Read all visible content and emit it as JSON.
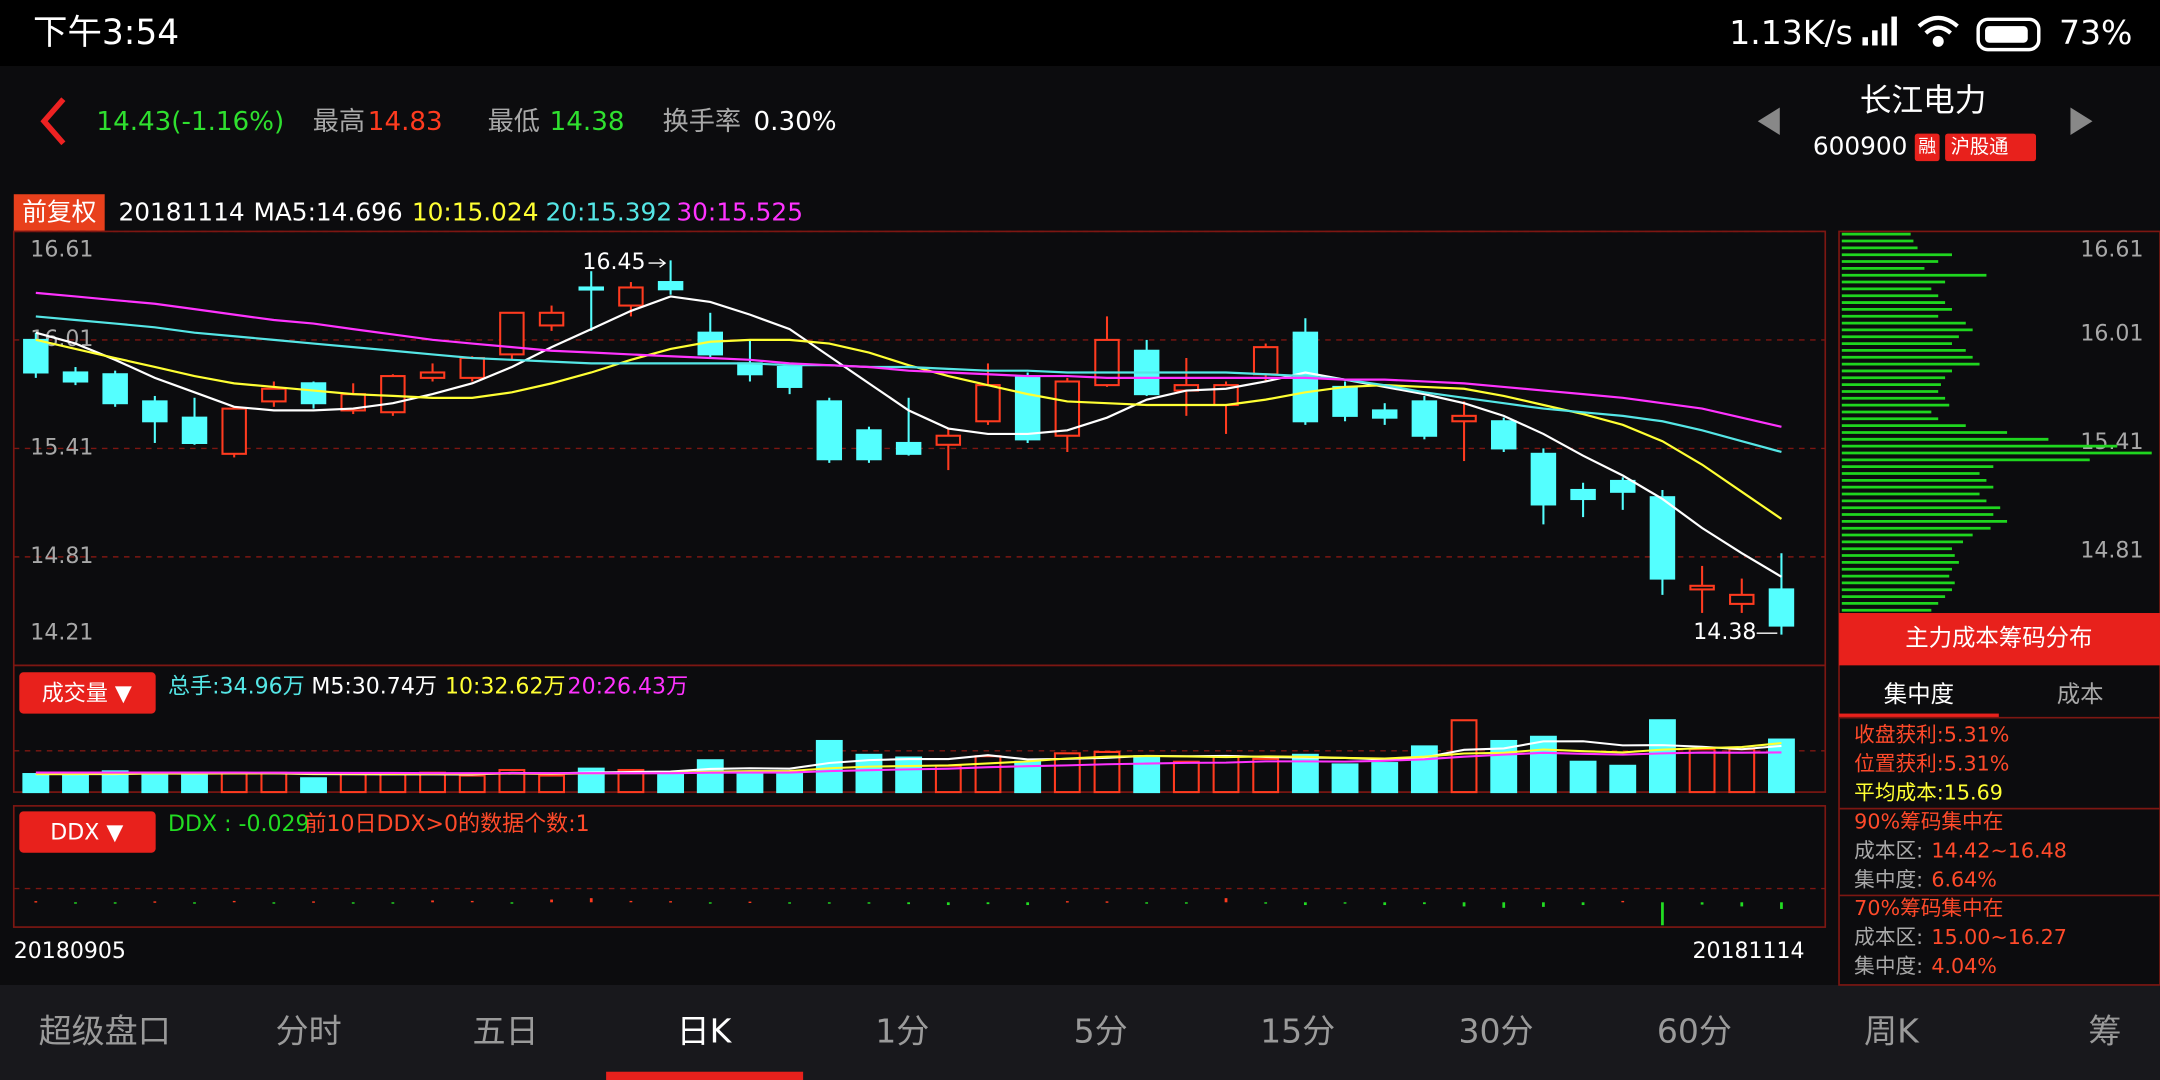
{
  "status_bar": {
    "time": "下午3:54",
    "speed": "1.13K/s",
    "battery": "73%"
  },
  "header": {
    "price": "14.43(-1.16%)",
    "high_label": "最高",
    "high": "14.83",
    "low_label": "最低",
    "low": "14.38",
    "turnover_label": "换手率",
    "turnover": "0.30%",
    "name": "长江电力",
    "code": "600900",
    "badge_margin": "融",
    "badge_connect": "沪股通"
  },
  "chart_data": [
    {
      "type": "candlestick",
      "adjust_label": "前复权",
      "categories": [
        "20180905",
        null,
        null,
        null,
        null,
        null,
        null,
        null,
        null,
        null,
        null,
        null,
        null,
        null,
        null,
        null,
        null,
        null,
        null,
        null,
        null,
        null,
        null,
        null,
        null,
        null,
        null,
        null,
        null,
        null,
        null,
        null,
        null,
        null,
        null,
        null,
        null,
        null,
        null,
        null,
        null,
        null,
        null,
        null,
        "20181114"
      ],
      "open": [
        16.01,
        15.83,
        15.82,
        15.67,
        15.58,
        15.38,
        15.67,
        15.77,
        15.62,
        15.61,
        15.8,
        15.8,
        15.93,
        16.09,
        16.3,
        16.2,
        16.33,
        16.05,
        15.88,
        15.86,
        15.67,
        15.51,
        15.44,
        15.43,
        15.56,
        15.81,
        15.48,
        15.76,
        15.95,
        15.73,
        15.65,
        15.82,
        16.05,
        15.75,
        15.62,
        15.67,
        15.56,
        15.56,
        15.38,
        15.18,
        15.23,
        15.14,
        14.63,
        14.55,
        14.63
      ],
      "high": [
        16.05,
        15.86,
        15.84,
        15.7,
        15.69,
        15.63,
        15.78,
        15.78,
        15.77,
        15.82,
        15.88,
        15.92,
        16.16,
        16.2,
        16.39,
        16.33,
        16.45,
        16.16,
        16.01,
        15.88,
        15.69,
        15.53,
        15.69,
        15.52,
        15.88,
        15.83,
        15.8,
        16.14,
        16.01,
        15.91,
        15.78,
        15.99,
        16.13,
        15.78,
        15.66,
        15.7,
        15.67,
        15.58,
        15.41,
        15.22,
        15.25,
        15.18,
        14.76,
        14.69,
        14.83
      ],
      "low": [
        15.8,
        15.76,
        15.64,
        15.44,
        15.43,
        15.36,
        15.64,
        15.63,
        15.6,
        15.59,
        15.78,
        15.78,
        15.9,
        16.06,
        16.06,
        16.14,
        16.26,
        15.91,
        15.78,
        15.71,
        15.33,
        15.33,
        15.37,
        15.29,
        15.54,
        15.44,
        15.39,
        15.75,
        15.7,
        15.59,
        15.49,
        15.78,
        15.54,
        15.56,
        15.54,
        15.46,
        15.34,
        15.39,
        14.99,
        15.03,
        15.07,
        14.6,
        14.5,
        14.5,
        14.38
      ],
      "close": [
        15.83,
        15.78,
        15.66,
        15.56,
        15.44,
        15.63,
        15.74,
        15.66,
        15.71,
        15.81,
        15.83,
        15.91,
        16.16,
        16.16,
        16.29,
        16.3,
        16.29,
        15.93,
        15.82,
        15.75,
        15.35,
        15.35,
        15.38,
        15.48,
        15.76,
        15.46,
        15.78,
        16.01,
        15.71,
        15.76,
        15.76,
        15.97,
        15.56,
        15.59,
        15.58,
        15.48,
        15.59,
        15.41,
        15.1,
        15.13,
        15.17,
        14.69,
        14.65,
        14.6,
        14.43
      ],
      "up_color": "#ff3b1f",
      "down_color": "#54ffff",
      "series": [
        {
          "name": "MA5:14.696",
          "color": "#ffffff",
          "values": [
            16.05,
            15.99,
            15.9,
            15.8,
            15.72,
            15.64,
            15.62,
            15.62,
            15.63,
            15.66,
            15.71,
            15.77,
            15.86,
            15.97,
            16.07,
            16.17,
            16.25,
            16.22,
            16.15,
            16.07,
            15.92,
            15.77,
            15.62,
            15.52,
            15.49,
            15.49,
            15.51,
            15.58,
            15.68,
            15.73,
            15.74,
            15.78,
            15.83,
            15.79,
            15.75,
            15.71,
            15.66,
            15.59,
            15.49,
            15.37,
            15.26,
            15.13,
            14.97,
            14.83,
            14.7
          ]
        },
        {
          "name": "10:15.024",
          "color": "#ffff33",
          "values": [
            16.01,
            15.96,
            15.91,
            15.86,
            15.81,
            15.77,
            15.75,
            15.73,
            15.71,
            15.7,
            15.69,
            15.69,
            15.72,
            15.77,
            15.83,
            15.9,
            15.96,
            16.0,
            16.01,
            16.01,
            15.99,
            15.94,
            15.87,
            15.81,
            15.76,
            15.71,
            15.67,
            15.66,
            15.65,
            15.65,
            15.65,
            15.68,
            15.72,
            15.75,
            15.76,
            15.75,
            15.74,
            15.7,
            15.65,
            15.6,
            15.54,
            15.45,
            15.32,
            15.17,
            15.02
          ]
        },
        {
          "name": "20:15.392",
          "color": "#55e6e6",
          "values": [
            16.14,
            16.12,
            16.1,
            16.08,
            16.05,
            16.03,
            16.01,
            15.99,
            15.97,
            15.95,
            15.93,
            15.91,
            15.9,
            15.89,
            15.88,
            15.88,
            15.88,
            15.88,
            15.88,
            15.87,
            15.87,
            15.86,
            15.86,
            15.85,
            15.84,
            15.84,
            15.83,
            15.83,
            15.83,
            15.83,
            15.83,
            15.82,
            15.81,
            15.79,
            15.76,
            15.72,
            15.69,
            15.66,
            15.63,
            15.61,
            15.59,
            15.56,
            15.51,
            15.45,
            15.39
          ]
        },
        {
          "name": "30:15.525",
          "color": "#ff33ff",
          "values": [
            16.27,
            16.25,
            16.23,
            16.21,
            16.18,
            16.15,
            16.12,
            16.1,
            16.07,
            16.04,
            16.01,
            15.99,
            15.97,
            15.95,
            15.94,
            15.93,
            15.92,
            15.91,
            15.9,
            15.88,
            15.87,
            15.86,
            15.84,
            15.83,
            15.82,
            15.81,
            15.81,
            15.8,
            15.8,
            15.8,
            15.8,
            15.8,
            15.8,
            15.79,
            15.79,
            15.78,
            15.77,
            15.75,
            15.73,
            15.71,
            15.69,
            15.66,
            15.63,
            15.58,
            15.53
          ]
        }
      ],
      "ylim": [
        14.21,
        16.61
      ],
      "yticks": [
        16.61,
        16.01,
        15.41,
        14.81,
        14.21
      ],
      "grid": true
    },
    {
      "type": "bar",
      "button": "成交量 ▼",
      "up_color": "#ff3b1f",
      "down_color": "#54ffff",
      "ylim": [
        0,
        55
      ],
      "series": [
        {
          "name": "总手:34.96万",
          "color": "#55e6e6",
          "values": [
            12.0,
            11.0,
            13.8,
            12.9,
            12.0,
            12.9,
            12.9,
            9.2,
            12.0,
            12.0,
            12.9,
            11.0,
            14.7,
            11.0,
            15.6,
            14.7,
            12.9,
            21.2,
            12.9,
            12.9,
            34.0,
            24.8,
            23.0,
            17.5,
            23.9,
            20.2,
            25.8,
            26.7,
            23.9,
            20.2,
            23.9,
            22.1,
            24.8,
            18.4,
            19.3,
            30.4,
            47.8,
            34.0,
            36.8,
            20.2,
            17.5,
            47.8,
            28.5,
            28.5,
            34.96
          ]
        },
        {
          "name": "M5:30.74万",
          "color": "#ffffff",
          "values": [
            12,
            12,
            12,
            12.5,
            12.3,
            12.7,
            12.5,
            12.0,
            11.9,
            11.8,
            11.8,
            11.7,
            12.7,
            12.5,
            13.0,
            13.4,
            13.7,
            15.4,
            15.9,
            15.6,
            19.3,
            21.3,
            22.0,
            22.0,
            24.6,
            21.7,
            22.1,
            22.8,
            24.1,
            23.8,
            24.1,
            23.4,
            22.9,
            22.7,
            21.7,
            23.0,
            28.1,
            29.1,
            33.7,
            33.8,
            31.1,
            31.3,
            30.2,
            28.5,
            30.74
          ]
        },
        {
          "name": "10:32.62万",
          "color": "#ffff33",
          "values": [
            12,
            12,
            12.2,
            12.3,
            12.3,
            12.4,
            12.5,
            12.3,
            12.2,
            12.1,
            12.1,
            12.1,
            12.3,
            12.1,
            12.5,
            12.6,
            12.7,
            13.6,
            13.9,
            14.0,
            15.9,
            17.0,
            17.3,
            17.8,
            19.1,
            20.4,
            22.4,
            23.6,
            24.0,
            23.7,
            23.3,
            23.7,
            23.5,
            22.7,
            22.4,
            23.6,
            25.7,
            26.1,
            28.3,
            27.2,
            26.4,
            28.2,
            29.2,
            30.0,
            32.62
          ]
        },
        {
          "name": "20:26.43万",
          "color": "#ff33ff",
          "values": [
            13,
            13,
            13,
            13,
            13,
            13,
            12.9,
            12.8,
            12.7,
            12.7,
            12.6,
            12.6,
            12.6,
            12.6,
            12.6,
            12.6,
            12.6,
            12.9,
            13.0,
            13.0,
            13.9,
            14.6,
            15.1,
            15.6,
            16.6,
            17.2,
            17.8,
            18.5,
            19.0,
            19.4,
            19.6,
            20.4,
            20.4,
            20.3,
            20.8,
            21.8,
            23.6,
            24.9,
            26.1,
            25.5,
            24.9,
            25.8,
            26.3,
            26.2,
            26.43
          ]
        }
      ]
    },
    {
      "type": "bar",
      "button": "DDX ▼",
      "note": "前10日DDX>0的数据个数:1",
      "up_color": "#ff3b1f",
      "down_color": "#22dd22",
      "ylim": [
        -0.108,
        0.39
      ],
      "series": [
        {
          "name": "DDX : -0.029",
          "color": "#22dd22",
          "values": [
            0.005,
            -0.003,
            -0.004,
            0.004,
            -0.004,
            0.006,
            -0.003,
            0.004,
            -0.004,
            -0.005,
            0.008,
            0.006,
            -0.005,
            0.012,
            0.018,
            0.006,
            0.005,
            -0.004,
            0.003,
            -0.005,
            -0.006,
            -0.005,
            -0.008,
            -0.012,
            -0.008,
            -0.012,
            0.005,
            0.004,
            -0.006,
            -0.005,
            0.018,
            -0.006,
            -0.012,
            -0.005,
            -0.012,
            -0.008,
            -0.018,
            -0.024,
            -0.02,
            -0.012,
            0.006,
            -0.1,
            -0.01,
            -0.018,
            -0.029
          ]
        }
      ]
    },
    {
      "type": "barh",
      "color": "#1fd61f",
      "values": [
        50,
        52,
        55,
        80,
        70,
        60,
        105,
        75,
        65,
        70,
        75,
        80,
        70,
        90,
        95,
        85,
        80,
        90,
        95,
        100,
        80,
        75,
        72,
        70,
        75,
        78,
        65,
        70,
        90,
        120,
        150,
        200,
        225,
        180,
        110,
        100,
        105,
        110,
        100,
        105,
        115,
        110,
        120,
        108,
        95,
        88,
        80,
        82,
        85,
        80,
        78,
        82,
        80,
        75,
        70,
        65
      ]
    }
  ],
  "chip_panel": {
    "button": "主力成本筹码分布",
    "tab_active": "集中度",
    "tab_other": "成本",
    "close_profit": "收盘获利:5.31%",
    "position_profit": "位置获利:5.31%",
    "avg_cost": "平均成本:15.69",
    "band90": {
      "title": "90%筹码集中在",
      "range_label": "成本区:",
      "range": "14.42~16.48",
      "conc_label": "集中度:",
      "conc": "6.64%"
    },
    "band70": {
      "title": "70%筹码集中在",
      "range_label": "成本区:",
      "range": "15.00~16.27",
      "conc_label": "集中度:",
      "conc": "4.04%"
    }
  },
  "tabs": [
    "超级盘口",
    "分时",
    "五日",
    "日K",
    "1分",
    "5分",
    "15分",
    "30分",
    "60分",
    "周K",
    "筹"
  ]
}
